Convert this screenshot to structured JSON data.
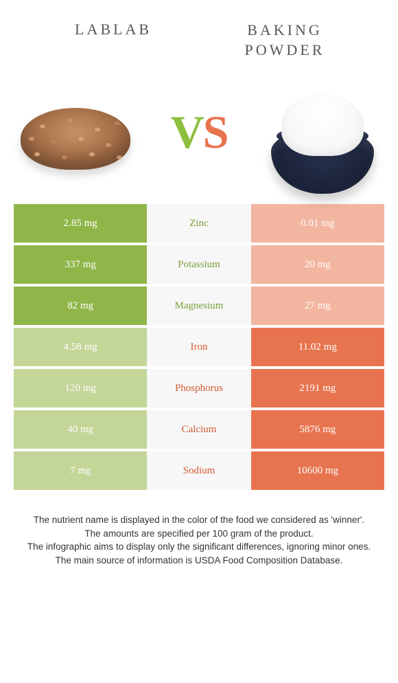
{
  "header": {
    "left_title": "LABLAB",
    "right_title": "BAKING POWDER"
  },
  "vs": {
    "v": "V",
    "s": "S"
  },
  "colors": {
    "left_full": "#90b548",
    "left_faded": "#c3d698",
    "right_full": "#e8744f",
    "right_faded": "#f2b59f",
    "mid_bg": "#f7f7f7",
    "green_text": "#7a9e3a",
    "orange_text": "#d45a33"
  },
  "nutrients": [
    {
      "name": "Zinc",
      "left": "2.85 mg",
      "right": "0.01 mg",
      "winner": "left"
    },
    {
      "name": "Potassium",
      "left": "337 mg",
      "right": "20 mg",
      "winner": "left"
    },
    {
      "name": "Magnesium",
      "left": "82 mg",
      "right": "27 mg",
      "winner": "left"
    },
    {
      "name": "Iron",
      "left": "4.58 mg",
      "right": "11.02 mg",
      "winner": "right"
    },
    {
      "name": "Phosphorus",
      "left": "120 mg",
      "right": "2191 mg",
      "winner": "right"
    },
    {
      "name": "Calcium",
      "left": "40 mg",
      "right": "5876 mg",
      "winner": "right"
    },
    {
      "name": "Sodium",
      "left": "7 mg",
      "right": "10600 mg",
      "winner": "right"
    }
  ],
  "footer": {
    "line1": "The nutrient name is displayed in the color of the food we considered as 'winner'.",
    "line2": "The amounts are specified per 100 gram of the product.",
    "line3": "The infographic aims to display only the significant differences, ignoring minor ones.",
    "line4": "The main source of information is USDA Food Composition Database."
  }
}
